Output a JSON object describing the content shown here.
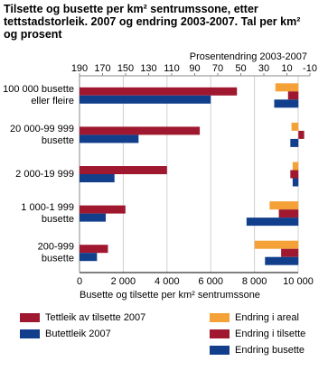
{
  "chart_data": {
    "type": "bar",
    "orientation": "horizontal",
    "title": "Tilsette og busette per km² sentrumssone, etter tettstadstorleik. 2007 og endring 2003-2007. Tal per km² og prosent",
    "xlabel": "Busette og tilsette per km² sentrumssone",
    "x2label": "Prosentendring 2003-2007",
    "categories": [
      [
        "100 000 busette",
        "eller fleire"
      ],
      [
        "20 000-99 999",
        "busette"
      ],
      [
        "2 000-19 999"
      ],
      [
        "1 000-1 999",
        "busette"
      ],
      [
        "200-999",
        "busette"
      ]
    ],
    "xlim": [
      0,
      10000
    ],
    "xticks": [
      0,
      {
        "value": 2000,
        "label": "2 000"
      },
      {
        "value": 4000,
        "label": "4 000"
      },
      {
        "value": 6000,
        "label": "6 000"
      },
      {
        "value": 8000,
        "label": "8 000"
      },
      {
        "value": 10000,
        "label": "10 000"
      }
    ],
    "x2lim": [
      190,
      -10
    ],
    "x2ticks": [
      190,
      170,
      150,
      130,
      110,
      90,
      70,
      50,
      30,
      10,
      -10
    ],
    "grid": true,
    "series": [
      {
        "name": "Tettleik av tilsette 2007",
        "color": "#a0182f",
        "values": [
          7200,
          5500,
          4000,
          2100,
          1300
        ]
      },
      {
        "name": "Butettleik 2007",
        "color": "#123f8c",
        "values": [
          6000,
          2700,
          1600,
          1200,
          800
        ]
      },
      {
        "name": "Endring i areal",
        "color": "#f4a137",
        "axis": "x2",
        "values": [
          20,
          6,
          5,
          25,
          38
        ]
      },
      {
        "name": "Endring i tilsette",
        "color": "#a0182f",
        "axis": "x2",
        "values": [
          9,
          -5,
          7,
          17,
          15
        ]
      },
      {
        "name": "Endring busette",
        "color": "#123f8c",
        "axis": "x2",
        "values": [
          21,
          7,
          5,
          45,
          29
        ]
      }
    ]
  }
}
